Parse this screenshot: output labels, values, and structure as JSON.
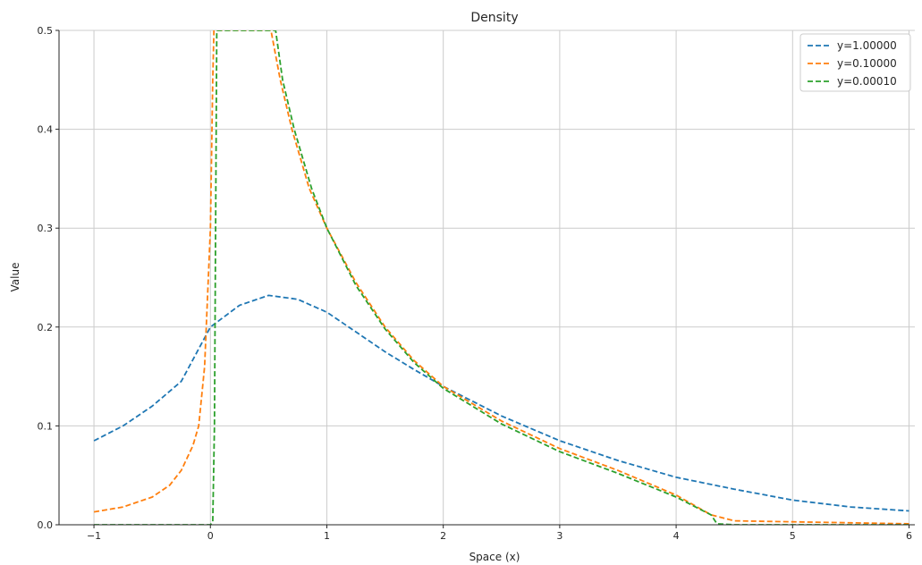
{
  "chart_data": {
    "type": "line",
    "title": "Density",
    "xlabel": "Space (x)",
    "ylabel": "Value",
    "xlim": [
      -1.3,
      6.05
    ],
    "ylim": [
      0,
      0.5
    ],
    "xticks": [
      -1,
      0,
      1,
      2,
      3,
      4,
      5,
      6
    ],
    "xtick_labels": [
      "−1",
      "0",
      "1",
      "2",
      "3",
      "4",
      "5",
      "6"
    ],
    "yticks": [
      0.0,
      0.1,
      0.2,
      0.3,
      0.4,
      0.5
    ],
    "ytick_labels": [
      "0.0",
      "0.1",
      "0.2",
      "0.3",
      "0.4",
      "0.5"
    ],
    "grid": true,
    "legend_position": "top-right",
    "line_style": "dashed",
    "series": [
      {
        "name": "y=1.00000",
        "color": "#1f77b4",
        "points": [
          [
            -1,
            0.085
          ],
          [
            -0.75,
            0.1
          ],
          [
            -0.5,
            0.12
          ],
          [
            -0.25,
            0.145
          ],
          [
            0,
            0.2
          ],
          [
            0.25,
            0.222
          ],
          [
            0.5,
            0.232
          ],
          [
            0.75,
            0.228
          ],
          [
            1,
            0.215
          ],
          [
            1.25,
            0.195
          ],
          [
            1.5,
            0.175
          ],
          [
            1.75,
            0.157
          ],
          [
            2,
            0.14
          ],
          [
            2.5,
            0.11
          ],
          [
            3,
            0.085
          ],
          [
            3.5,
            0.065
          ],
          [
            4,
            0.048
          ],
          [
            4.5,
            0.036
          ],
          [
            5,
            0.025
          ],
          [
            5.5,
            0.018
          ],
          [
            6,
            0.014
          ]
        ]
      },
      {
        "name": "y=0.10000",
        "color": "#ff7f0e",
        "points": [
          [
            -1,
            0.013
          ],
          [
            -0.75,
            0.018
          ],
          [
            -0.5,
            0.028
          ],
          [
            -0.35,
            0.04
          ],
          [
            -0.25,
            0.055
          ],
          [
            -0.15,
            0.08
          ],
          [
            -0.1,
            0.1
          ],
          [
            -0.05,
            0.16
          ],
          [
            0,
            0.3
          ],
          [
            0.02,
            0.45
          ],
          [
            0.03,
            0.5
          ],
          [
            0.52,
            0.5
          ],
          [
            0.6,
            0.45
          ],
          [
            0.7,
            0.4
          ],
          [
            0.85,
            0.34
          ],
          [
            1,
            0.3
          ],
          [
            1.25,
            0.245
          ],
          [
            1.5,
            0.2
          ],
          [
            1.75,
            0.166
          ],
          [
            2,
            0.14
          ],
          [
            2.5,
            0.105
          ],
          [
            3,
            0.077
          ],
          [
            3.5,
            0.055
          ],
          [
            4,
            0.03
          ],
          [
            4.3,
            0.01
          ],
          [
            4.5,
            0.004
          ],
          [
            5,
            0.003
          ],
          [
            5.5,
            0.002
          ],
          [
            6,
            0.001
          ]
        ]
      },
      {
        "name": "y=0.00010",
        "color": "#2ca02c",
        "points": [
          [
            -1,
            0
          ],
          [
            -0.5,
            0
          ],
          [
            0,
            0
          ],
          [
            0.02,
            0.003
          ],
          [
            0.035,
            0.1
          ],
          [
            0.045,
            0.3
          ],
          [
            0.055,
            0.5
          ],
          [
            0.56,
            0.5
          ],
          [
            0.62,
            0.45
          ],
          [
            0.72,
            0.4
          ],
          [
            0.87,
            0.34
          ],
          [
            1,
            0.3
          ],
          [
            1.25,
            0.242
          ],
          [
            1.5,
            0.198
          ],
          [
            1.75,
            0.164
          ],
          [
            2,
            0.138
          ],
          [
            2.5,
            0.102
          ],
          [
            3,
            0.074
          ],
          [
            3.5,
            0.052
          ],
          [
            4,
            0.028
          ],
          [
            4.3,
            0.01
          ],
          [
            4.35,
            0.001
          ],
          [
            4.5,
            0
          ],
          [
            5,
            0
          ],
          [
            5.5,
            0
          ],
          [
            6,
            0
          ]
        ]
      }
    ]
  }
}
